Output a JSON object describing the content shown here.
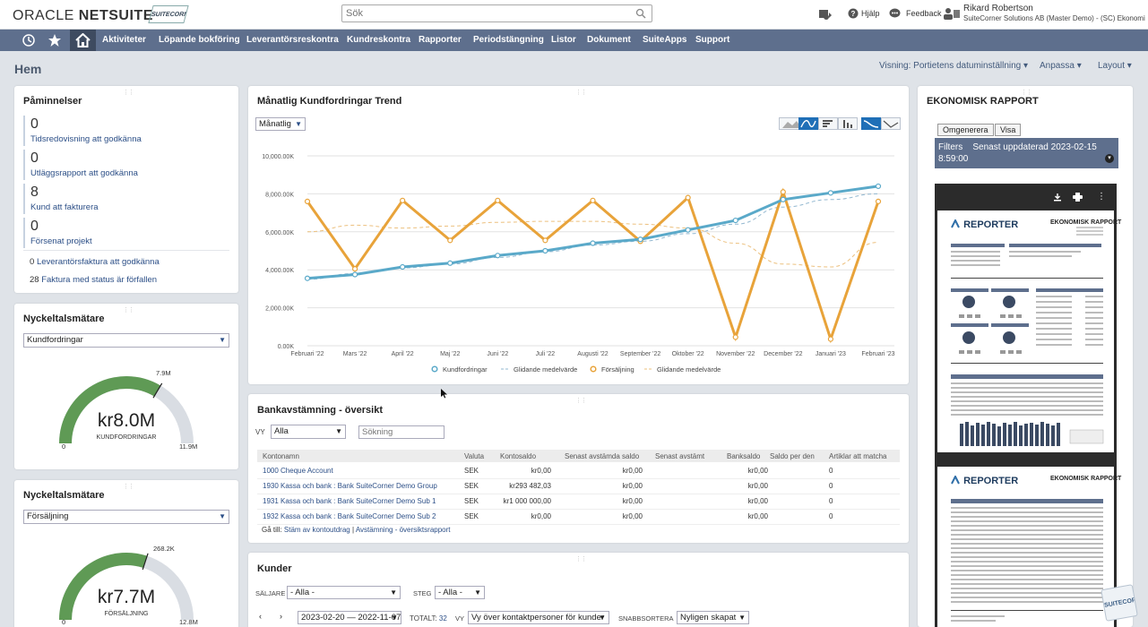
{
  "header": {
    "logo_oracle": "ORACLE",
    "logo_netsuite": "NETSUITE",
    "partner_logo": "SUITECORNER",
    "search_placeholder": "Sök",
    "help": "Hjälp",
    "feedback": "Feedback",
    "user_name": "Rikard Robertson",
    "user_org": "SuiteCorner Solutions AB (Master Demo) - (SC) Ekonomi"
  },
  "nav": {
    "items": [
      "Aktiviteter",
      "Löpande bokföring",
      "Leverantörsreskontra",
      "Kundreskontra",
      "Rapporter",
      "Periodstängning",
      "Listor",
      "Dokument",
      "SuiteApps",
      "Support"
    ]
  },
  "page": {
    "title": "Hem",
    "view": "Visning: Portietens datuminställning",
    "customize": "Anpassa",
    "layout": "Layout"
  },
  "reminders": {
    "title": "Påminnelser",
    "items": [
      {
        "count": "0",
        "label": "Tidsredovisning att godkänna"
      },
      {
        "count": "0",
        "label": "Utläggsrapport att godkänna"
      },
      {
        "count": "8",
        "label": "Kund att fakturera"
      },
      {
        "count": "0",
        "label": "Försenat projekt"
      }
    ],
    "lines": [
      {
        "count": "0",
        "label": "Leverantörsfaktura att godkänna"
      },
      {
        "count": "28",
        "label": "Faktura med status är förfallen"
      }
    ]
  },
  "kpi1": {
    "title": "Nyckeltalsmätare",
    "select": "Kundfordringar",
    "value": "kr8.0M",
    "caption": "KUNDFORDRINGAR",
    "min": "0",
    "max": "11.9M",
    "target": "7.9M",
    "fill_fraction": 0.67,
    "color": "#5f9a55"
  },
  "kpi2": {
    "title": "Nyckeltalsmätare",
    "select": "Försäljning",
    "value": "kr7.7M",
    "caption": "FÖRSÄLJNING",
    "min": "0",
    "max": "12.8M",
    "target": "268.2K",
    "fill_fraction": 0.6,
    "color": "#5f9a55"
  },
  "trend": {
    "title": "Månatlig Kundfordringar Trend",
    "select": "Månatlig"
  },
  "chart_data": {
    "type": "line",
    "title": "Månatlig Kundfordringar Trend",
    "categories": [
      "Februari '22",
      "Mars '22",
      "April '22",
      "Maj '22",
      "Juni '22",
      "Juli '22",
      "Augusti '22",
      "September '22",
      "Oktober '22",
      "November '22",
      "December '22",
      "Januari '23",
      "Februari '23"
    ],
    "y_ticks": [
      "0.00K",
      "2,000.00K",
      "4,000.00K",
      "6,000.00K",
      "8,000.00K",
      "10,000.00K"
    ],
    "ylim": [
      0,
      10000
    ],
    "series": [
      {
        "name": "Kundfordringar",
        "color": "#5aa9c9",
        "values": [
          3550,
          3750,
          4150,
          4350,
          4750,
          5000,
          5400,
          5600,
          6100,
          6600,
          7700,
          8050,
          8400
        ]
      },
      {
        "name": "Glidande medelvärde",
        "color": "#93b8d0",
        "values": [
          3500,
          3800,
          4100,
          4300,
          4650,
          4950,
          5300,
          5500,
          5900,
          6400,
          7300,
          7700,
          8000
        ]
      },
      {
        "name": "Försäljning",
        "color": "#e8a33a",
        "values": [
          7600,
          4050,
          7650,
          5550,
          7650,
          5550,
          7650,
          5500,
          7800,
          450,
          8100,
          350,
          7600
        ]
      },
      {
        "name": "Glidande medelvärde",
        "color": "#ecc07e",
        "values": [
          6000,
          6350,
          6200,
          6300,
          6500,
          6550,
          6550,
          6400,
          6200,
          5400,
          4300,
          4150,
          5450
        ]
      }
    ]
  },
  "bank": {
    "title": "Bankavstämning - översikt",
    "vy_label": "VY",
    "vy_value": "Alla",
    "search_placeholder": "Sökning",
    "columns": [
      "Kontonamn",
      "Valuta",
      "Kontosaldo",
      "Senast avstämda saldo",
      "Senast avstämt",
      "Banksaldo",
      "Saldo per den",
      "Artiklar att matcha"
    ],
    "rows": [
      [
        "1000 Cheque Account",
        "SEK",
        "kr0,00",
        "kr0,00",
        "",
        "kr0,00",
        "",
        "0"
      ],
      [
        "1930 Kassa och bank : Bank SuiteCorner Demo Group",
        "SEK",
        "kr293 482,03",
        "kr0,00",
        "",
        "kr0,00",
        "",
        "0"
      ],
      [
        "1931 Kassa och bank : Bank SuiteCorner Demo Sub 1",
        "SEK",
        "kr1 000 000,00",
        "kr0,00",
        "",
        "kr0,00",
        "",
        "0"
      ],
      [
        "1932 Kassa och bank : Bank SuiteCorner Demo Sub 2",
        "SEK",
        "kr0,00",
        "kr0,00",
        "",
        "kr0,00",
        "",
        "0"
      ]
    ],
    "goto_label": "Gå till:",
    "goto_link1": "Stäm av kontoutdrag",
    "goto_sep": "|",
    "goto_link2": "Avstämning - översiktsrapport"
  },
  "customers": {
    "title": "Kunder",
    "seller_label": "SÄLJARE",
    "seller_value": "- Alla -",
    "stage_label": "STEG",
    "stage_value": "- Alla -",
    "date_range": "2023-02-20 — 2022-11-07",
    "total_label": "TOTALT:",
    "total_value": "32",
    "vy_label": "VY",
    "vy_value": "Vy över kontaktpersoner för kunder",
    "sort_label": "SNABBSORTERA",
    "sort_value": "Nyligen skapat"
  },
  "report": {
    "title": "EKONOMISK RAPPORT",
    "btn_regen": "Omgenerera",
    "btn_show": "Visa",
    "filters_label": "Filters",
    "filters_updated": "Senast uppdaterad 2023-02-15 8:59:00",
    "logo": "REPORTER",
    "doc_title": "EKONOMISK RAPPORT"
  }
}
